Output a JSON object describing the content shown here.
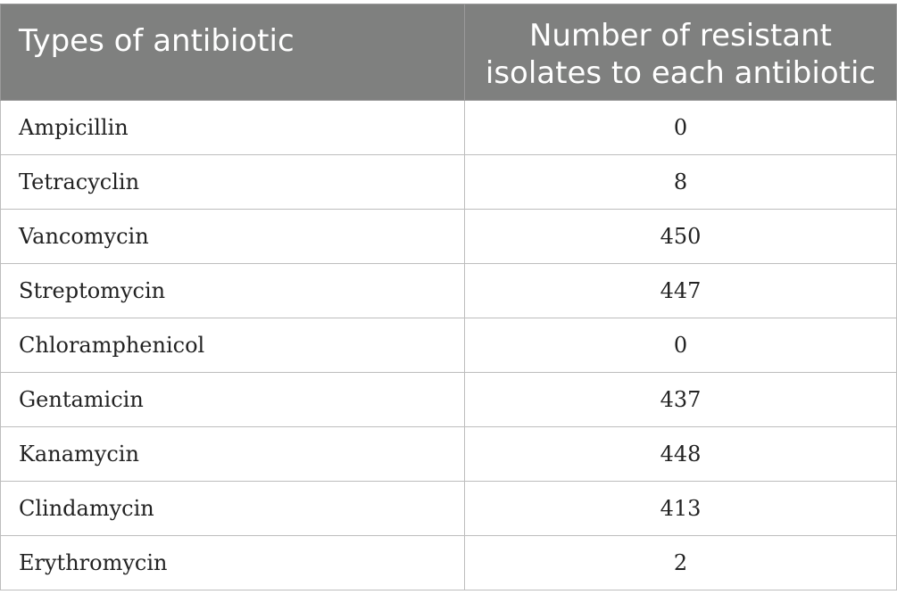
{
  "table": {
    "headers": {
      "col1": "Types of antibiotic",
      "col2_line1": "Number of resistant",
      "col2_line2": "isolates to each antibiotic"
    },
    "rows": [
      {
        "antibiotic": "Ampicillin",
        "resistant": "0"
      },
      {
        "antibiotic": "Tetracyclin",
        "resistant": "8"
      },
      {
        "antibiotic": "Vancomycin",
        "resistant": "450"
      },
      {
        "antibiotic": "Streptomycin",
        "resistant": "447"
      },
      {
        "antibiotic": "Chloramphenicol",
        "resistant": "0"
      },
      {
        "antibiotic": "Gentamicin",
        "resistant": "437"
      },
      {
        "antibiotic": "Kanamycin",
        "resistant": "448"
      },
      {
        "antibiotic": "Clindamycin",
        "resistant": "413"
      },
      {
        "antibiotic": "Erythromycin",
        "resistant": "2"
      }
    ]
  },
  "colors": {
    "header_background": "#7f807f",
    "header_text": "#ffffff",
    "grid_line": "#bdbdbd",
    "body_text": "#222222"
  }
}
